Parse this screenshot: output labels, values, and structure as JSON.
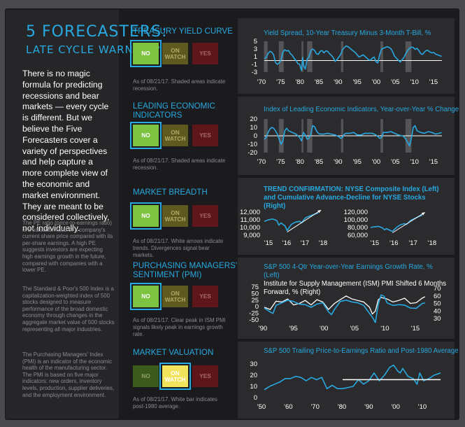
{
  "header": {
    "title": "5 FORECASTERS:",
    "subtitle": "LATE CYCLE WARNING?"
  },
  "intro": "There is no magic formula for predicting recessions and bear markets — every cycle is different. But we believe the Five Forecasters cover a variety of perspectives and help capture a more complete view of the economic and market environment. They are meant to be considered collectively, not individually.",
  "definitions": [
    "The PE ratio (price-to-earnings ratio) is a valuation ratio of a company's current share price compared with its per-share earnings. A high PE suggests investors are expecting high earnings growth in the future, compared with companies with a lower PE.",
    "The Standard & Poor's 500 Index is a capitalization-weighted index of 500 stocks designed to measure performance of the broad domestic economy through changes in the aggregate market value of 500 stocks representing all major industries.",
    "The Purchasing Managers' Index (PMI) is an indicator of the economic health of the manufacturing sector. The PMI is based on five major indicators: new orders, inventory levels, production, supplier deliveries, and the employment environment."
  ],
  "signal_labels": {
    "no": "NO",
    "on_watch": "ON WATCH",
    "yes": "YES"
  },
  "forecasters": [
    {
      "label": "Treasury Yield Curve",
      "signal": "no",
      "note": "As of 08/21/17. Shaded areas indicate recession."
    },
    {
      "label": "Leading Economic Indicators",
      "signal": "no",
      "note": "As of 08/21/17. Shaded areas indicate recession."
    },
    {
      "label": "Market Breadth",
      "signal": "no",
      "note": "As of 08/21/17. White arrows indicate trends. Divergences signal bear markets."
    },
    {
      "label": "Purchasing Managers' Sentiment (PMI)",
      "signal": "no",
      "note": "As of 08/21/17. Clear peak in ISM PMI signals likely peak in earnings growth rate."
    },
    {
      "label": "Market Valuation",
      "signal": "on_watch",
      "note": "As of 08/21/17. White bar indicates post-1980 average."
    }
  ],
  "colors": {
    "accent": "#28a9e1",
    "no": "#7dc241",
    "on_watch": "#f1e35c",
    "yes": "#5f161a",
    "series": "#28a9e1",
    "secondary": "#ffffff"
  },
  "chart_data": [
    {
      "type": "line",
      "title": "Yield Spread, 10-Year Treasury Minus 3-Month T-Bill, %",
      "x_ticks": [
        "'70",
        "'75",
        "'80",
        "'85",
        "'90",
        "'95",
        "'00",
        "'05",
        "'10",
        "'15"
      ],
      "y_ticks": [
        "5",
        "3",
        "1",
        "-1",
        "-3"
      ],
      "xlim": [
        1970,
        2017.7
      ],
      "ylim": [
        -3,
        5
      ],
      "series": [
        {
          "x": [
            1970,
            1970.5,
            1971,
            1971.5,
            1972,
            1972.5,
            1973,
            1973.5,
            1974,
            1974.5,
            1975,
            1975.5,
            1976,
            1976.5,
            1977,
            1977.5,
            1978,
            1978.5,
            1979,
            1979.5,
            1980,
            1980.3,
            1980.6,
            1981,
            1981.5,
            1982,
            1982.5,
            1983,
            1983.5,
            1984,
            1984.5,
            1985,
            1985.5,
            1986,
            1986.5,
            1987,
            1987.5,
            1988,
            1988.5,
            1989,
            1989.5,
            1990,
            1990.5,
            1991,
            1991.5,
            1992,
            1992.5,
            1993,
            1993.5,
            1994,
            1994.5,
            1995,
            1995.5,
            1996,
            1996.5,
            1997,
            1997.5,
            1998,
            1998.5,
            1999,
            1999.5,
            2000,
            2000.5,
            2001,
            2001.5,
            2002,
            2002.5,
            2003,
            2003.5,
            2004,
            2004.5,
            2005,
            2005.5,
            2006,
            2006.5,
            2007,
            2007.5,
            2008,
            2008.5,
            2009,
            2009.5,
            2010,
            2010.5,
            2011,
            2011.5,
            2012,
            2012.5,
            2013,
            2013.5,
            2014,
            2014.5,
            2015,
            2015.5,
            2016,
            2016.5,
            2017,
            2017.6
          ],
          "values": [
            0.5,
            0.8,
            1.8,
            2.4,
            2.2,
            1.5,
            -0.5,
            -1.0,
            -0.6,
            0.2,
            2.2,
            2.8,
            2.5,
            2.6,
            1.8,
            1.4,
            0.6,
            0.0,
            -0.8,
            -1.0,
            -2.6,
            0.8,
            -1.4,
            -2.2,
            0.4,
            0.9,
            2.6,
            3.0,
            2.6,
            1.8,
            1.6,
            2.4,
            2.6,
            2.0,
            2.5,
            2.4,
            1.8,
            1.4,
            0.8,
            -0.2,
            0.2,
            0.9,
            1.6,
            2.8,
            3.4,
            3.8,
            3.6,
            3.2,
            2.8,
            2.4,
            2.0,
            1.4,
            0.9,
            1.2,
            1.5,
            1.1,
            0.7,
            0.2,
            0.1,
            0.6,
            0.9,
            -0.3,
            -0.6,
            1.6,
            3.0,
            3.2,
            3.4,
            3.6,
            3.4,
            3.1,
            2.2,
            1.1,
            0.6,
            0.1,
            -0.4,
            0.2,
            0.8,
            1.8,
            2.6,
            3.2,
            3.5,
            3.4,
            2.9,
            3.2,
            2.6,
            1.8,
            1.6,
            2.2,
            2.6,
            2.6,
            2.2,
            2.0,
            2.1,
            1.7,
            1.5,
            1.3,
            1.1
          ]
        }
      ],
      "recessions": [
        [
          1969.9,
          1970.9
        ],
        [
          1973.9,
          1975.2
        ],
        [
          1980.0,
          1980.5
        ],
        [
          1981.5,
          1982.9
        ],
        [
          1990.6,
          1991.2
        ],
        [
          2001.2,
          2001.9
        ],
        [
          2007.9,
          2009.5
        ]
      ]
    },
    {
      "type": "line",
      "title": "Index of Leading Economic Indicators, Year-over-Year % Change",
      "x_ticks": [
        "'70",
        "'75",
        "'80",
        "'85",
        "'90",
        "'95",
        "'00",
        "'05",
        "'10",
        "'15"
      ],
      "y_ticks": [
        "20",
        "10",
        "0",
        "-10",
        "-20"
      ],
      "xlim": [
        1970,
        2017.7
      ],
      "ylim": [
        -20,
        20
      ],
      "series": [
        {
          "x": [
            1970,
            1970.5,
            1971,
            1971.5,
            1972,
            1972.5,
            1973,
            1973.5,
            1974,
            1974.5,
            1975,
            1975.5,
            1976,
            1976.5,
            1977,
            1977.5,
            1978,
            1978.5,
            1979,
            1979.5,
            1980,
            1980.5,
            1981,
            1981.5,
            1982,
            1982.5,
            1983,
            1983.5,
            1984,
            1984.5,
            1985,
            1986,
            1987,
            1988,
            1989,
            1989.5,
            1990,
            1990.5,
            1991,
            1991.5,
            1992,
            1993,
            1994,
            1995,
            1996,
            1997,
            1998,
            1999,
            2000,
            2000.5,
            2001,
            2001.5,
            2002,
            2003,
            2004,
            2005,
            2006,
            2007,
            2007.5,
            2008,
            2008.5,
            2009,
            2009.5,
            2010,
            2010.5,
            2011,
            2012,
            2013,
            2014,
            2015,
            2016,
            2017,
            2017.6
          ],
          "values": [
            -4,
            -2,
            4,
            8,
            10,
            9,
            6,
            2,
            -4,
            -10,
            -6,
            6,
            9,
            6,
            5,
            4,
            3,
            2,
            0,
            -2,
            -6,
            4,
            1,
            -4,
            -3,
            2,
            12,
            11,
            6,
            3,
            2,
            2,
            3,
            2,
            1,
            0,
            -1,
            -3,
            -2,
            2,
            3,
            3,
            4,
            1,
            1,
            3,
            3,
            3,
            1,
            -1,
            -3,
            -2,
            4,
            4,
            5,
            3,
            1,
            0,
            -1,
            -4,
            -8,
            -12,
            -3,
            10,
            12,
            6,
            4,
            3,
            5,
            4,
            2,
            3,
            4
          ]
        }
      ],
      "recessions": [
        [
          1969.9,
          1970.9
        ],
        [
          1973.9,
          1975.2
        ],
        [
          1980.0,
          1980.5
        ],
        [
          1981.5,
          1982.9
        ],
        [
          1990.6,
          1991.2
        ],
        [
          2001.2,
          2001.9
        ],
        [
          2007.9,
          2009.5
        ]
      ]
    },
    {
      "type": "line",
      "title": "TREND CONFIRMATION: NYSE Composite Index (Left) and Cumulative Advance-Decline for NYSE Stocks (Right)",
      "subcharts": [
        {
          "x_ticks": [
            "'15",
            "'16",
            "'17",
            "'18"
          ],
          "y_ticks": [
            "12,000",
            "11,000",
            "10,000",
            "9,000"
          ],
          "xlim": [
            2015,
            2018.1
          ],
          "ylim": [
            9000,
            12000
          ],
          "x": [
            2015,
            2015.2,
            2015.4,
            2015.6,
            2015.7,
            2015.8,
            2016,
            2016.1,
            2016.3,
            2016.5,
            2016.7,
            2016.8,
            2016.9,
            2017,
            2017.2,
            2017.4,
            2017.6
          ],
          "values": [
            10800,
            11000,
            11100,
            10900,
            10300,
            10600,
            10200,
            9600,
            10400,
            10700,
            10800,
            10600,
            11000,
            11300,
            11500,
            11700,
            11900
          ]
        },
        {
          "x_ticks": [
            "'15",
            "'16",
            "'17",
            "'18"
          ],
          "y_ticks": [
            "120,000",
            "100,000",
            "80,000",
            "60,000"
          ],
          "xlim": [
            2015,
            2018.1
          ],
          "ylim": [
            60000,
            120000
          ],
          "x": [
            2015,
            2015.2,
            2015.4,
            2015.6,
            2015.7,
            2015.8,
            2016,
            2016.1,
            2016.3,
            2016.5,
            2016.7,
            2016.8,
            2016.9,
            2017,
            2017.2,
            2017.4,
            2017.6
          ],
          "values": [
            80000,
            82000,
            83000,
            79000,
            74000,
            77000,
            72000,
            70000,
            80000,
            87000,
            90000,
            88000,
            92000,
            98000,
            103000,
            108000,
            112000
          ]
        }
      ]
    },
    {
      "type": "line",
      "title": "S&P 500 4-Qtr Year-over-Year Earnings Growth Rate, % (Left)",
      "title2": "Institute for Supply Management (ISM) PMI Shifted 6 Months Forward, % (Right)",
      "x_ticks": [
        "'90",
        "'95",
        "'00",
        "'05",
        "'10",
        "'15"
      ],
      "y_ticks_left": [
        "75",
        "50",
        "25",
        "0",
        "-25",
        "-50"
      ],
      "y_ticks_right": [
        "70",
        "60",
        "50",
        "40",
        "30"
      ],
      "xlim": [
        1990,
        2018
      ],
      "ylim_left": [
        -50,
        75
      ],
      "ylim_right": [
        30,
        70
      ],
      "series": [
        {
          "x": [
            1990,
            1991,
            1991.5,
            1992,
            1993,
            1994,
            1995,
            1996,
            1997,
            1998,
            1999,
            2000,
            2001,
            2001.5,
            2002,
            2003,
            2004,
            2005,
            2006,
            2007,
            2008,
            2008.5,
            2009,
            2009.5,
            2010,
            2010.5,
            2011,
            2012,
            2013,
            2014,
            2015,
            2016,
            2017,
            2017.5
          ],
          "values": [
            -5,
            -20,
            -25,
            5,
            15,
            25,
            20,
            10,
            8,
            -2,
            10,
            15,
            -20,
            -30,
            -10,
            20,
            25,
            18,
            15,
            5,
            -25,
            -40,
            -60,
            10,
            45,
            40,
            15,
            5,
            8,
            6,
            -5,
            -6,
            12,
            15
          ]
        },
        {
          "x": [
            1990,
            1991,
            1992,
            1993,
            1994,
            1995,
            1996,
            1997,
            1998,
            1999,
            2000,
            2001,
            2002,
            2003,
            2004,
            2005,
            2006,
            2007,
            2008,
            2008.5,
            2009,
            2009.5,
            2010,
            2011,
            2012,
            2013,
            2014,
            2015,
            2016,
            2017,
            2017.5
          ],
          "values": [
            45,
            42,
            53,
            52,
            56,
            48,
            50,
            54,
            48,
            55,
            52,
            42,
            50,
            55,
            60,
            56,
            54,
            52,
            45,
            36,
            40,
            55,
            58,
            56,
            52,
            54,
            57,
            50,
            51,
            57,
            59
          ]
        }
      ]
    },
    {
      "type": "line",
      "title": "S&P 500 Trailing Price-to-Earnings Ratio and Post-1980 Average",
      "x_ticks": [
        "'50",
        "'60",
        "'70",
        "'80",
        "'90",
        "'00",
        "'10"
      ],
      "y_ticks": [
        "30",
        "20",
        "10",
        "0"
      ],
      "xlim": [
        1950,
        2018
      ],
      "ylim": [
        0,
        30
      ],
      "series": [
        {
          "x": [
            1950,
            1952,
            1954,
            1956,
            1958,
            1960,
            1962,
            1964,
            1966,
            1968,
            1970,
            1972,
            1974,
            1976,
            1978,
            1980,
            1982,
            1984,
            1986,
            1988,
            1990,
            1992,
            1994,
            1996,
            1998,
            1999.5,
            2001,
            2002,
            2003,
            2005,
            2007,
            2008.5,
            2009.5,
            2011,
            2013,
            2015,
            2017.5
          ],
          "values": [
            7,
            10,
            12,
            14,
            17,
            17,
            19,
            18,
            15,
            18,
            16,
            18,
            8,
            11,
            8,
            8,
            9,
            10,
            16,
            12,
            15,
            22,
            15,
            20,
            27,
            29,
            24,
            22,
            26,
            19,
            17,
            12,
            22,
            15,
            17,
            20,
            22
          ]
        }
      ],
      "average": {
        "from": 1980,
        "to": 2017.5,
        "value": 16
      }
    }
  ]
}
